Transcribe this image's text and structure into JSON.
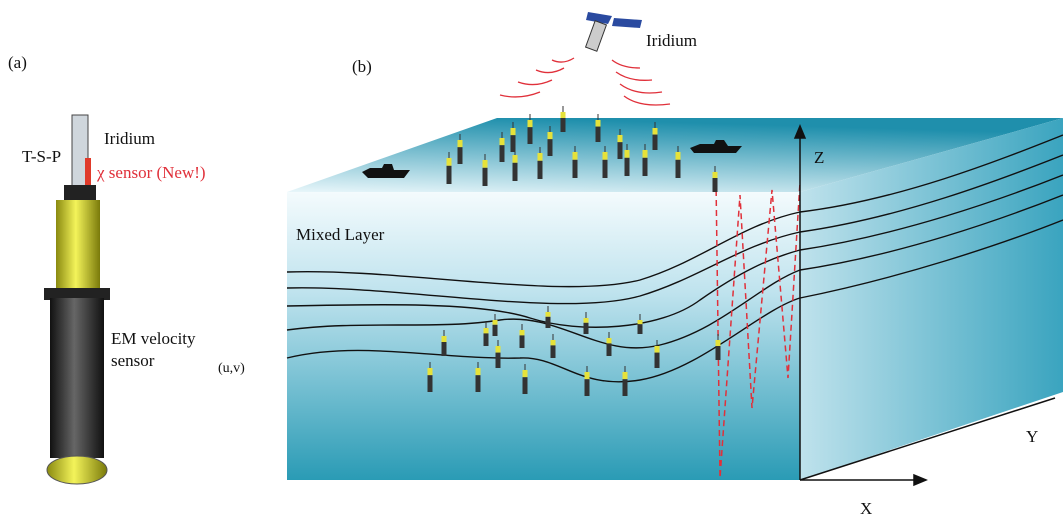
{
  "panel_a": {
    "label": "(a)",
    "iridium": "Iridium",
    "tsp": "T-S-P",
    "chi_sensor": "χ sensor (New!)",
    "em_line1": "EM velocity",
    "em_line2": "sensor"
  },
  "panel_b": {
    "label": "(b)",
    "iridium": "Iridium",
    "uv": "(u,v)",
    "mixed_layer": "Mixed Layer",
    "axis_z": "Z",
    "axis_y": "Y",
    "axis_x": "X"
  }
}
